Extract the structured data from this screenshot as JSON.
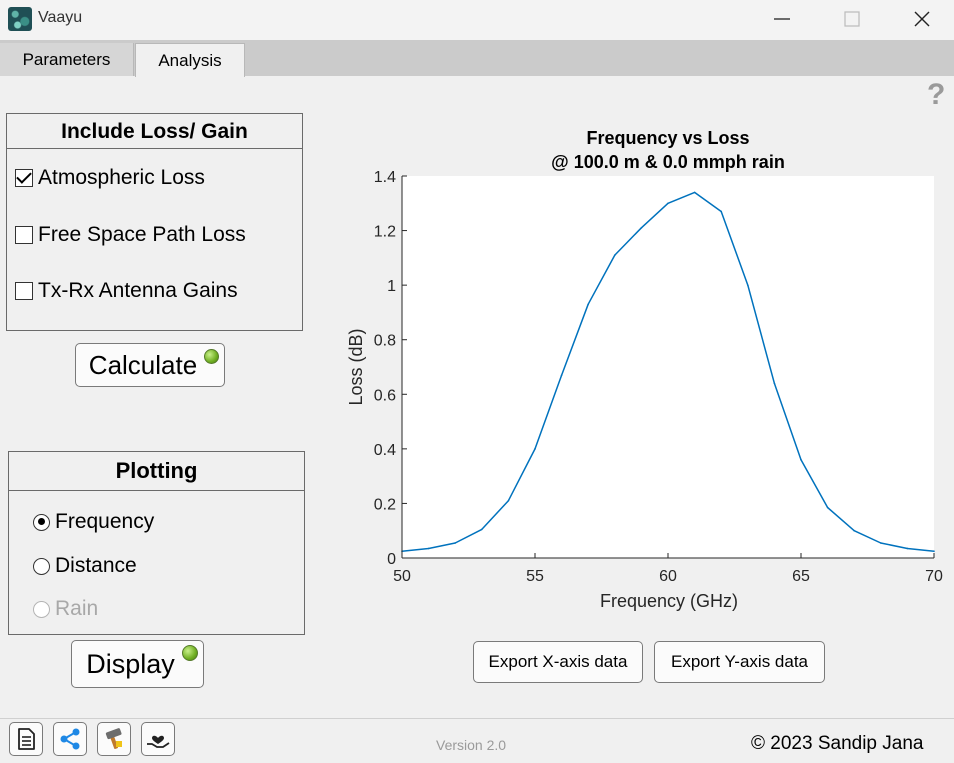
{
  "window": {
    "title": "Vaayu"
  },
  "tabs": [
    {
      "label": "Parameters"
    },
    {
      "label": "Analysis"
    }
  ],
  "help_label": "?",
  "loss_panel": {
    "title": "Include Loss/ Gain",
    "options": [
      {
        "label": "Atmospheric Loss",
        "checked": true
      },
      {
        "label": "Free Space Path Loss",
        "checked": false
      },
      {
        "label": "Tx-Rx Antenna Gains",
        "checked": false
      }
    ],
    "calculate_label": "Calculate",
    "lamp_color": "#7ac12e"
  },
  "plot_panel": {
    "title": "Plotting",
    "options": [
      {
        "label": "Frequency",
        "selected": true,
        "enabled": true
      },
      {
        "label": "Distance",
        "selected": false,
        "enabled": true
      },
      {
        "label": "Rain",
        "selected": false,
        "enabled": false
      }
    ],
    "display_label": "Display"
  },
  "export": {
    "x_label": "Export X-axis data",
    "y_label": "Export Y-axis data"
  },
  "footer": {
    "version": "Version 2.0",
    "copyright": "© 2023 Sandip Jana"
  },
  "chart_data": {
    "type": "line",
    "title": "Frequency vs Loss",
    "subtitle": "@ 100.0 m & 0.0 mmph rain",
    "xlabel": "Frequency (GHz)",
    "ylabel": "Loss (dB)",
    "xlim": [
      50,
      70
    ],
    "ylim": [
      0,
      1.4
    ],
    "xticks": [
      "50",
      "55",
      "60",
      "65",
      "70"
    ],
    "yticks": [
      "0",
      "0.2",
      "0.4",
      "0.6",
      "0.8",
      "1",
      "1.2",
      "1.4"
    ],
    "line_color": "#0072bd",
    "x": [
      50,
      51,
      52,
      53,
      54,
      55,
      56,
      57,
      58,
      59,
      60,
      61,
      62,
      63,
      64,
      65,
      66,
      67,
      68,
      69,
      70
    ],
    "y": [
      0.025,
      0.035,
      0.055,
      0.105,
      0.21,
      0.4,
      0.67,
      0.93,
      1.11,
      1.21,
      1.3,
      1.34,
      1.27,
      1.0,
      0.64,
      0.36,
      0.185,
      0.1,
      0.055,
      0.035,
      0.025
    ]
  }
}
